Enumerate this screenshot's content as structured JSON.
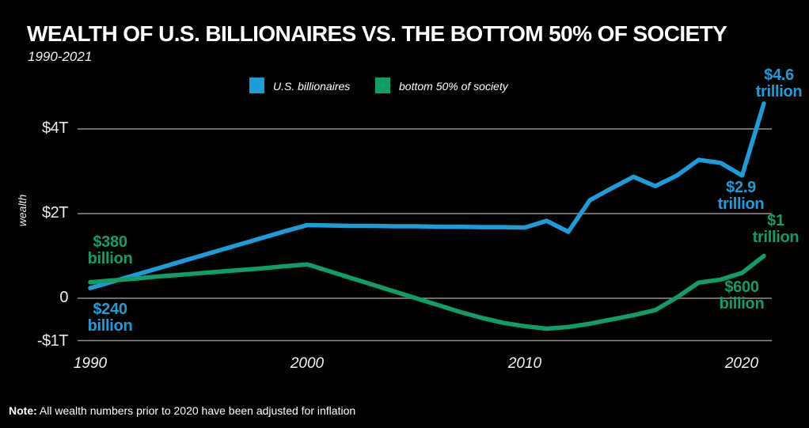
{
  "title": "WEALTH OF U.S. BILLIONAIRES VS. THE BOTTOM 50% OF SOCIETY",
  "subtitle": "1990-2021",
  "colors": {
    "background": "#000000",
    "billionaires_blue": "#1b9dd9",
    "bottom50_green": "#0f9e66",
    "gridline": "#8f8f8f",
    "text": "#ffffff"
  },
  "legend": {
    "billionaires_label": "U.S. billionaires",
    "bottom50_label": "bottom 50% of society"
  },
  "y_axis": {
    "label": "wealth",
    "ticks": [
      "$4T",
      "$2T",
      "0",
      "-$1T"
    ],
    "tick_values": [
      4,
      2,
      0,
      -1
    ]
  },
  "x_axis": {
    "ticks": [
      "1990",
      "2000",
      "2010",
      "2020"
    ],
    "tick_values": [
      1990,
      2000,
      2010,
      2020
    ]
  },
  "annotations": [
    {
      "id": "green-1990",
      "line1": "$380",
      "line2": "billion",
      "series": "bottom 50% of society",
      "year": 1990
    },
    {
      "id": "blue-1990",
      "line1": "$240",
      "line2": "billion",
      "series": "U.S. billionaires",
      "year": 1990
    },
    {
      "id": "blue-2021",
      "line1": "$4.6",
      "line2": "trillion",
      "series": "U.S. billionaires",
      "year": 2021
    },
    {
      "id": "blue-2020",
      "line1": "$2.9",
      "line2": "trillion",
      "series": "U.S. billionaires",
      "year": 2020
    },
    {
      "id": "green-2021",
      "line1": "$1",
      "line2": "trillion",
      "series": "bottom 50% of society",
      "year": 2021
    },
    {
      "id": "green-2020",
      "line1": "$600",
      "line2": "billion",
      "series": "bottom 50% of society",
      "year": 2020
    }
  ],
  "note": {
    "prefix": "Note:",
    "text": " All wealth numbers prior to 2020 have been adjusted for inflation"
  },
  "chart_data": {
    "type": "line",
    "title": "Wealth of U.S. billionaires vs. the bottom 50% of society",
    "subtitle": "1990-2021",
    "xlabel": "",
    "ylabel": "wealth",
    "units": "trillions of USD",
    "xlim": [
      1990,
      2021
    ],
    "ylim": [
      -1.3,
      5
    ],
    "grid": "horizontal",
    "legend_position": "top",
    "x": [
      1990,
      1991,
      1992,
      1993,
      1994,
      1995,
      1996,
      1997,
      1998,
      1999,
      2000,
      2001,
      2002,
      2003,
      2004,
      2005,
      2006,
      2007,
      2008,
      2009,
      2010,
      2011,
      2012,
      2013,
      2014,
      2015,
      2016,
      2017,
      2018,
      2019,
      2020,
      2021
    ],
    "series": [
      {
        "id": "billionaires",
        "name": "U.S. billionaires",
        "color": "#1b9dd9",
        "values": [
          0.24,
          0.39,
          0.54,
          0.69,
          0.84,
          0.99,
          1.14,
          1.29,
          1.44,
          1.59,
          1.73,
          1.72,
          1.71,
          1.71,
          1.7,
          1.7,
          1.69,
          1.69,
          1.68,
          1.68,
          1.67,
          1.83,
          1.57,
          2.32,
          2.6,
          2.87,
          2.65,
          2.9,
          3.27,
          3.2,
          2.9,
          4.6
        ]
      },
      {
        "id": "bottom50",
        "name": "bottom 50% of society",
        "color": "#0f9e66",
        "values": [
          0.38,
          0.42,
          0.46,
          0.51,
          0.55,
          0.59,
          0.63,
          0.67,
          0.71,
          0.76,
          0.8,
          0.64,
          0.48,
          0.32,
          0.16,
          0.0,
          -0.16,
          -0.32,
          -0.46,
          -0.58,
          -0.66,
          -0.72,
          -0.68,
          -0.6,
          -0.5,
          -0.4,
          -0.28,
          0.02,
          0.37,
          0.44,
          0.6,
          1.0
        ]
      }
    ],
    "labeled_points": [
      {
        "series": "U.S. billionaires",
        "year": 1990,
        "label": "$240 billion"
      },
      {
        "series": "U.S. billionaires",
        "year": 2020,
        "label": "$2.9 trillion"
      },
      {
        "series": "U.S. billionaires",
        "year": 2021,
        "label": "$4.6 trillion"
      },
      {
        "series": "bottom 50% of society",
        "year": 1990,
        "label": "$380 billion"
      },
      {
        "series": "bottom 50% of society",
        "year": 2020,
        "label": "$600 billion"
      },
      {
        "series": "bottom 50% of society",
        "year": 2021,
        "label": "$1 trillion"
      }
    ]
  }
}
